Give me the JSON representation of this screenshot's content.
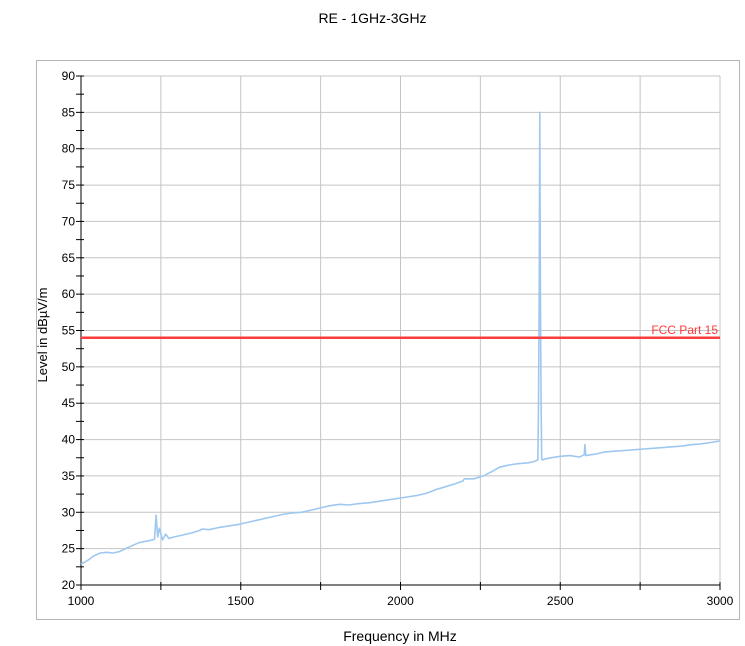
{
  "chart_data": {
    "type": "line",
    "title": "RE - 1GHz-3GHz",
    "xlabel": "Frequency in MHz",
    "ylabel": "Level in dBµV/m",
    "xlim": [
      1000,
      3000
    ],
    "ylim": [
      20,
      90
    ],
    "x_ticks": [
      1000,
      1500,
      2000,
      2500,
      3000
    ],
    "y_ticks": [
      20,
      25,
      30,
      35,
      40,
      45,
      50,
      55,
      60,
      65,
      70,
      75,
      80,
      85,
      90
    ],
    "grid": true,
    "series": [
      {
        "type": "line",
        "color": "#9ec8f0",
        "x": [
          1000,
          1010,
          1025,
          1040,
          1060,
          1080,
          1100,
          1120,
          1140,
          1160,
          1180,
          1200,
          1215,
          1230,
          1235,
          1240,
          1245,
          1255,
          1265,
          1275,
          1290,
          1310,
          1330,
          1350,
          1370,
          1380,
          1400,
          1430,
          1460,
          1490,
          1520,
          1550,
          1580,
          1600,
          1630,
          1660,
          1690,
          1720,
          1750,
          1780,
          1810,
          1840,
          1870,
          1900,
          1930,
          1960,
          1990,
          2020,
          2050,
          2080,
          2110,
          2140,
          2170,
          2195,
          2200,
          2230,
          2260,
          2290,
          2310,
          2340,
          2370,
          2400,
          2420,
          2430,
          2432,
          2434,
          2436,
          2438,
          2440,
          2442,
          2445,
          2450,
          2470,
          2500,
          2530,
          2560,
          2575,
          2577,
          2580,
          2610,
          2640,
          2670,
          2700,
          2730,
          2760,
          2790,
          2820,
          2850,
          2880,
          2910,
          2940,
          2970,
          3000
        ],
        "y": [
          22.9,
          23.1,
          23.5,
          24.0,
          24.4,
          24.5,
          24.4,
          24.6,
          25.0,
          25.4,
          25.8,
          26.0,
          26.1,
          26.3,
          29.6,
          26.6,
          27.8,
          26.2,
          27.0,
          26.4,
          26.6,
          26.8,
          27.0,
          27.2,
          27.5,
          27.7,
          27.6,
          27.9,
          28.1,
          28.3,
          28.6,
          28.9,
          29.2,
          29.4,
          29.7,
          29.9,
          30.0,
          30.3,
          30.6,
          30.9,
          31.1,
          31.0,
          31.2,
          31.3,
          31.5,
          31.7,
          31.9,
          32.1,
          32.3,
          32.6,
          33.1,
          33.5,
          33.9,
          34.3,
          34.6,
          34.6,
          35.0,
          35.7,
          36.2,
          36.5,
          36.7,
          36.8,
          37.0,
          37.2,
          45.0,
          60.0,
          85.0,
          60.0,
          45.0,
          37.3,
          37.2,
          37.3,
          37.5,
          37.7,
          37.8,
          37.6,
          37.9,
          39.3,
          37.8,
          38.0,
          38.3,
          38.4,
          38.5,
          38.6,
          38.7,
          38.8,
          38.9,
          39.0,
          39.1,
          39.3,
          39.4,
          39.6,
          39.8
        ]
      }
    ],
    "limit_line": {
      "name": "FCC Part 15",
      "value": 54,
      "color": "#ff3b3b"
    }
  }
}
